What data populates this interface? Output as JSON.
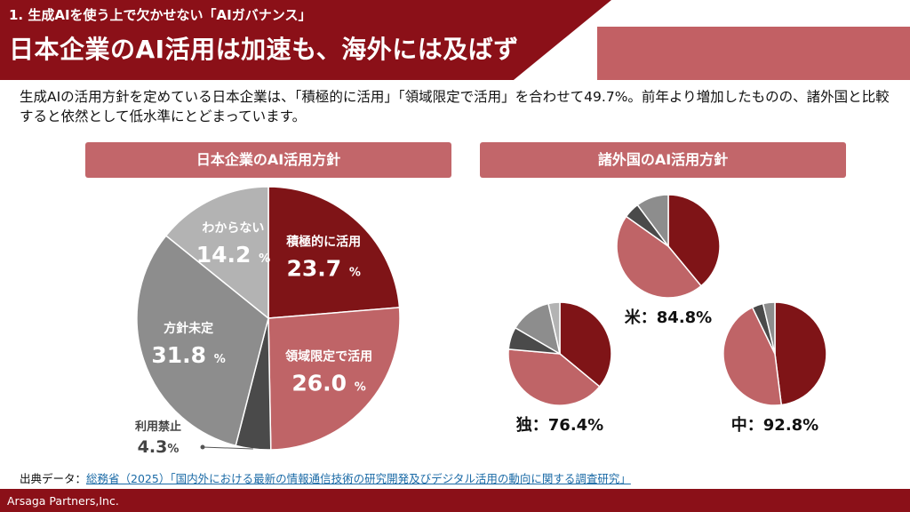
{
  "header": {
    "section": "1. 生成AIを使う上で欠かせない「AIガバナンス」",
    "title": "日本企業のAI活用は加速も、海外には及ばず"
  },
  "summary": "生成AIの活用方針を定めている日本企業は、「積極的に活用」「領域限定で活用」を合わせて49.7%。前年より増加したものの、諸外国と比較すると依然として低水準にとどまっています。",
  "panels": {
    "japan_title": "日本企業のAI活用方針",
    "overseas_title": "諸外国のAI活用方針"
  },
  "colors": {
    "dark_red": "#7f1417",
    "rose": "#bf6467",
    "dark_gray": "#4a4a4a",
    "mid_gray": "#8d8d8d",
    "light_gray": "#b3b3b3",
    "header_red": "#8b1018",
    "panel_rose": "#c2666a"
  },
  "chart_data": [
    {
      "type": "pie",
      "name": "japan",
      "segments": [
        {
          "label": "積極的に活用",
          "value": 23.7,
          "display": "23.7",
          "color": "#7f1417"
        },
        {
          "label": "領域限定で活用",
          "value": 26.0,
          "display": "26.0",
          "color": "#bf6467"
        },
        {
          "label": "利用禁止",
          "value": 4.3,
          "display": "4.3",
          "color": "#4a4a4a"
        },
        {
          "label": "方針未定",
          "value": 31.8,
          "display": "31.8",
          "color": "#8d8d8d"
        },
        {
          "label": "わからない",
          "value": 14.2,
          "display": "14.2",
          "color": "#b3b3b3"
        }
      ],
      "unit": "%"
    },
    {
      "type": "pie",
      "name": "us",
      "caption": "米：84.8%",
      "segments": [
        {
          "value": 39.0,
          "color": "#7f1417"
        },
        {
          "value": 45.8,
          "color": "#bf6467"
        },
        {
          "value": 5.0,
          "color": "#4a4a4a"
        },
        {
          "value": 10.2,
          "color": "#8d8d8d"
        }
      ]
    },
    {
      "type": "pie",
      "name": "germany",
      "caption": "独：76.4%",
      "segments": [
        {
          "value": 36.0,
          "color": "#7f1417"
        },
        {
          "value": 40.4,
          "color": "#bf6467"
        },
        {
          "value": 7.0,
          "color": "#4a4a4a"
        },
        {
          "value": 13.0,
          "color": "#8d8d8d"
        },
        {
          "value": 3.6,
          "color": "#b3b3b3"
        }
      ]
    },
    {
      "type": "pie",
      "name": "china",
      "caption": "中：92.8%",
      "segments": [
        {
          "value": 48.0,
          "color": "#7f1417"
        },
        {
          "value": 44.8,
          "color": "#bf6467"
        },
        {
          "value": 3.5,
          "color": "#4a4a4a"
        },
        {
          "value": 3.7,
          "color": "#8d8d8d"
        }
      ]
    }
  ],
  "source": {
    "label": "出典データ：",
    "link_text": "総務省（2025）「国内外における最新の情報通信技術の研究開発及びデジタル活用の動向に関する調査研究」"
  },
  "footer": {
    "company": "Arsaga Partners,Inc."
  }
}
